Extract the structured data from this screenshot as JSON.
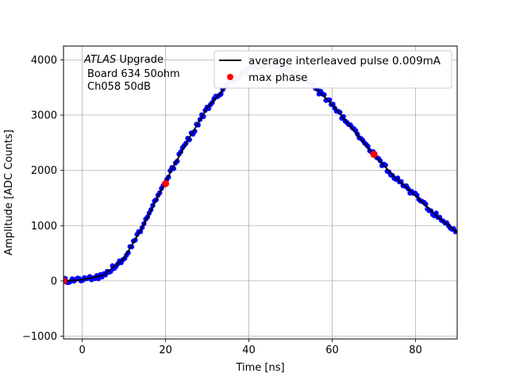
{
  "chart_data": {
    "type": "scatter",
    "title": "",
    "xlabel": "Time [ns]",
    "ylabel": "Amplitude [ADC Counts]",
    "xlim": [
      -4.5,
      90
    ],
    "ylim": [
      -1050,
      4250
    ],
    "xticks": [
      0,
      20,
      40,
      60,
      80
    ],
    "yticks": [
      -1000,
      0,
      1000,
      2000,
      3000,
      4000
    ],
    "grid": true,
    "legend_position": "top-right",
    "annotation": {
      "italic": "ATLAS",
      "rest": " Upgrade",
      "line2": "Board 634 50ohm",
      "line3": "Ch058 50dB"
    },
    "series": [
      {
        "name": "average interleaved pulse 0.009mA",
        "kind": "line",
        "color": "#000000",
        "x": [
          -4.5,
          0,
          5,
          10,
          15,
          20,
          25,
          30,
          35,
          40,
          45,
          50,
          55,
          60,
          65,
          70,
          75,
          80,
          85,
          90
        ],
        "y": [
          0,
          20,
          100,
          400,
          1050,
          1800,
          2500,
          3130,
          3560,
          3840,
          3920,
          3800,
          3560,
          3190,
          2740,
          2280,
          1880,
          1540,
          1180,
          880
        ]
      },
      {
        "name": "",
        "kind": "scatter",
        "color": "#0000ff",
        "x": [
          -4.5,
          0,
          5,
          10,
          15,
          20,
          25,
          30,
          35,
          40,
          45,
          50,
          55,
          60,
          65,
          70,
          75,
          80,
          85,
          90
        ],
        "y": [
          0,
          20,
          100,
          400,
          1050,
          1800,
          2500,
          3130,
          3560,
          3840,
          3920,
          3800,
          3560,
          3190,
          2740,
          2280,
          1880,
          1540,
          1180,
          880
        ]
      },
      {
        "name": "max phase",
        "kind": "markers",
        "color": "#ff0000",
        "x": [
          -4.5,
          20,
          45,
          70
        ],
        "y": [
          0,
          1760,
          3920,
          2290
        ]
      }
    ]
  }
}
